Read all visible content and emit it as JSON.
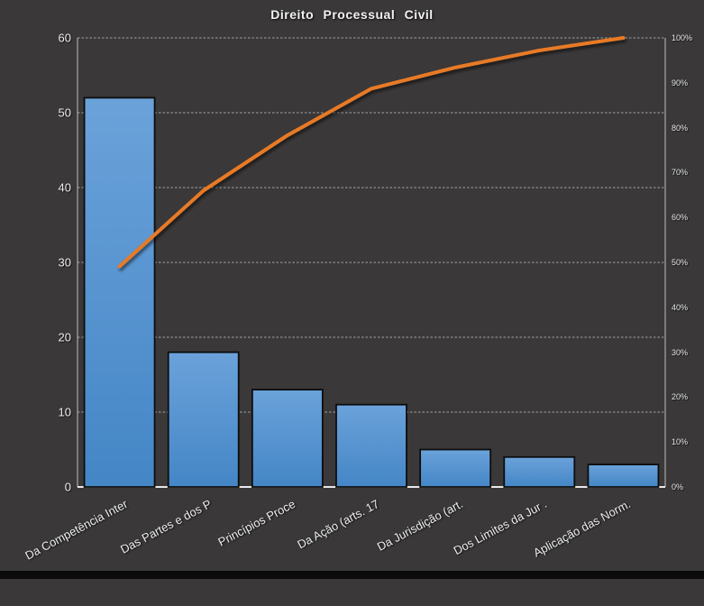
{
  "window": {
    "background": "#3A3838",
    "bottom_strip_color": "#0B0B0B"
  },
  "chart_data": {
    "type": "bar",
    "subtype": "pareto",
    "title": "Direito Processual Civil",
    "categories": [
      "Da Competência Inter",
      "Das Partes e dos P",
      "Princípios Proce",
      "Da Ação (arts. 17",
      "Da Jurisdição (art.",
      "Dos Limites da Jur .",
      "Aplicação das Norm."
    ],
    "values": [
      52,
      18,
      13,
      11,
      5,
      4,
      3
    ],
    "cumulative_line_pct": [
      49.1,
      66.0,
      78.3,
      88.7,
      93.4,
      97.2,
      100.0
    ],
    "left_axis": {
      "min": 0,
      "max": 60,
      "tick_step": 10,
      "tick_labels": [
        "0",
        "10",
        "20",
        "30",
        "40",
        "50",
        "60"
      ]
    },
    "right_axis": {
      "min": 0,
      "max": 100,
      "tick_labels": [
        "0%",
        "10%",
        "20%",
        "30%",
        "40%",
        "50%",
        "60%",
        "70%",
        "80%",
        "90%",
        "100%"
      ]
    },
    "legend": "none",
    "grid": "horizontal-dashed",
    "colors": {
      "background": "#3A3838",
      "bar_top": "#6BA2DA",
      "bar_bottom": "#4486C6",
      "bar_border": "#0D0D0D",
      "line": "#E87A28",
      "grid": "#C8C8C8",
      "axis": "#C0C0C0",
      "baseline": "#E8E8E8",
      "text": "#EFEFEF"
    }
  }
}
